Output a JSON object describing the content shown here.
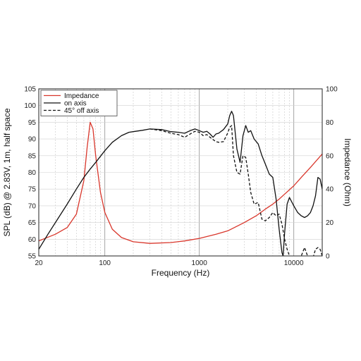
{
  "chart_data": {
    "type": "line",
    "title": "",
    "xlabel": "Frequency (Hz)",
    "ylabel_left": "SPL (dB) @ 2.83V, 1m, half space",
    "ylabel_right": "Impedance (Ohm)",
    "x_scale": "log",
    "xlim": [
      20,
      20000
    ],
    "ylim_left": [
      55,
      105
    ],
    "ylim_right": [
      0,
      100
    ],
    "x_ticks": [
      {
        "value": 20,
        "label": "20"
      },
      {
        "value": 100,
        "label": "100"
      },
      {
        "value": 1000,
        "label": "1000"
      },
      {
        "value": 10000,
        "label": "10000"
      }
    ],
    "y_left_ticks": [
      55,
      60,
      65,
      70,
      75,
      80,
      85,
      90,
      95,
      100,
      105
    ],
    "y_right_ticks": [
      0,
      20,
      40,
      60,
      80,
      100
    ],
    "grid": true,
    "legend_position": "top-left",
    "series": [
      {
        "name": "Impedance",
        "axis": "right",
        "color": "#d9362b",
        "dash": "",
        "x": [
          20,
          30,
          40,
          50,
          60,
          65,
          70,
          75,
          80,
          90,
          100,
          120,
          150,
          200,
          300,
          500,
          700,
          1000,
          1500,
          2000,
          3000,
          4000,
          5000,
          6000,
          7000,
          8000,
          10000,
          12000,
          15000,
          20000
        ],
        "y": [
          9,
          13,
          17,
          25,
          45,
          65,
          80,
          76,
          60,
          38,
          26,
          16,
          11,
          8.5,
          7.5,
          8,
          9,
          10.5,
          13,
          15,
          20,
          24,
          28,
          31,
          34,
          37,
          42,
          47,
          53,
          61
        ]
      },
      {
        "name": "on axis",
        "axis": "left",
        "color": "#111111",
        "dash": "",
        "x": [
          20,
          25,
          30,
          40,
          50,
          60,
          70,
          80,
          100,
          120,
          150,
          180,
          200,
          250,
          300,
          400,
          500,
          600,
          700,
          800,
          900,
          1000,
          1100,
          1200,
          1300,
          1400,
          1500,
          1600,
          1800,
          2000,
          2100,
          2200,
          2300,
          2500,
          2700,
          2900,
          3100,
          3300,
          3500,
          3800,
          4200,
          4600,
          5000,
          5500,
          6000,
          6500,
          7000,
          7500,
          7700,
          8000,
          8500,
          9000,
          10000,
          11000,
          12000,
          13000,
          14000,
          15000,
          16000,
          17000,
          18000,
          19000,
          20000
        ],
        "y": [
          57,
          61.5,
          65,
          70.5,
          75,
          78.5,
          81,
          83,
          86.5,
          89,
          91,
          92,
          92.2,
          92.6,
          93,
          92.8,
          92.2,
          92,
          91.7,
          92.5,
          93,
          92.5,
          92,
          92.3,
          91.5,
          90.5,
          91.5,
          91.7,
          92.8,
          94.5,
          97,
          98.3,
          97,
          87,
          83,
          91,
          94,
          92,
          92.5,
          90,
          88.5,
          85,
          82.5,
          79.5,
          78.5,
          72,
          63,
          56,
          55,
          62,
          70.5,
          72.5,
          70,
          68,
          67,
          66.5,
          67,
          68,
          70,
          73,
          78.5,
          78,
          75
        ]
      },
      {
        "name": "45° off axis",
        "axis": "left",
        "color": "#111111",
        "dash": "4 2.5",
        "x": [
          300,
          400,
          500,
          600,
          700,
          800,
          900,
          1000,
          1100,
          1200,
          1300,
          1400,
          1500,
          1600,
          1800,
          2000,
          2100,
          2200,
          2300,
          2500,
          2700,
          2900,
          3100,
          3300,
          3500,
          3800,
          4200,
          4600,
          5000,
          5500,
          6000,
          6500,
          7000,
          7500,
          8000,
          8500,
          9000,
          10000,
          11000,
          12000,
          13000,
          14000,
          15000,
          16000,
          17000,
          18000,
          19000,
          20000
        ],
        "y": [
          93,
          92.5,
          91.7,
          91.3,
          90.5,
          91.5,
          92.3,
          92,
          91,
          91.3,
          90.5,
          89.8,
          89.2,
          89,
          89.2,
          91.8,
          93.5,
          94,
          85,
          80,
          79.5,
          85,
          84.5,
          79.5,
          74,
          70.5,
          71,
          66,
          65.5,
          66.5,
          68,
          67,
          67.5,
          64.5,
          60,
          57,
          55,
          54,
          54.5,
          55,
          57.5,
          55,
          53.5,
          54.5,
          57,
          57.5,
          57,
          55
        ]
      }
    ]
  }
}
